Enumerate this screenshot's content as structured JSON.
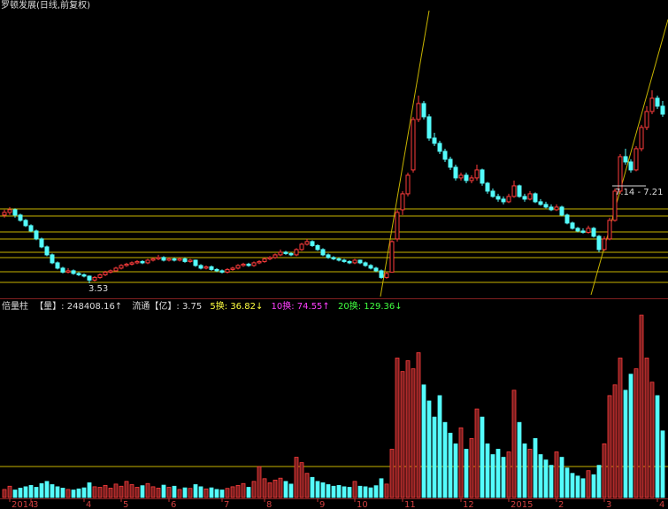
{
  "chart_data": {
    "type": "candlestick",
    "title": "罗顿发展(日线,前复权)",
    "volume_header": [
      "倍量柱",
      "【量】: 248408.16↑",
      "流通【亿】: 3.75",
      "5换: 36.82↓",
      "10换: 74.55↑",
      "20换: 129.36↓"
    ],
    "annotations": [
      "3.53",
      "7.14 - 7.21"
    ],
    "up_color": "#ff3c3c",
    "down_color": "#54fcfc",
    "ylim": [
      3.03,
      14.2
    ],
    "vlim": [
      0,
      700000
    ],
    "categories": [
      null,
      "2014",
      null,
      null,
      null,
      "3",
      null,
      null,
      null,
      null,
      null,
      null,
      null,
      null,
      null,
      "4",
      null,
      null,
      null,
      null,
      null,
      null,
      "5",
      null,
      null,
      null,
      null,
      null,
      null,
      null,
      null,
      "6",
      null,
      null,
      null,
      null,
      null,
      null,
      null,
      null,
      null,
      "7",
      null,
      null,
      null,
      null,
      null,
      null,
      null,
      "8",
      null,
      null,
      null,
      null,
      null,
      null,
      null,
      null,
      null,
      "9",
      null,
      null,
      null,
      null,
      null,
      null,
      "10",
      null,
      null,
      null,
      null,
      null,
      null,
      null,
      null,
      "11",
      null,
      null,
      null,
      null,
      null,
      null,
      null,
      null,
      null,
      null,
      "12",
      null,
      null,
      null,
      null,
      null,
      null,
      null,
      null,
      "2015",
      null,
      null,
      null,
      null,
      null,
      null,
      null,
      null,
      "2",
      null,
      null,
      null,
      null,
      null,
      null,
      null,
      null,
      "3",
      null,
      null,
      null,
      null,
      null,
      null,
      null,
      null,
      null,
      "4",
      null
    ],
    "candles": [
      [
        6.1,
        6.3,
        6.0,
        6.2
      ],
      [
        6.2,
        6.4,
        6.1,
        6.3
      ],
      [
        6.3,
        6.35,
        6.0,
        6.1
      ],
      [
        6.1,
        6.15,
        5.85,
        5.9
      ],
      [
        5.9,
        5.95,
        5.65,
        5.7
      ],
      [
        5.7,
        5.75,
        5.45,
        5.5
      ],
      [
        5.5,
        5.55,
        5.15,
        5.2
      ],
      [
        5.2,
        5.25,
        4.85,
        4.9
      ],
      [
        4.9,
        4.95,
        4.55,
        4.6
      ],
      [
        4.6,
        4.65,
        4.25,
        4.3
      ],
      [
        4.3,
        4.35,
        4.05,
        4.1
      ],
      [
        4.1,
        4.15,
        3.9,
        3.95
      ],
      [
        3.95,
        4.1,
        3.9,
        4.0
      ],
      [
        4.0,
        4.05,
        3.85,
        3.9
      ],
      [
        3.9,
        3.95,
        3.8,
        3.85
      ],
      [
        3.85,
        3.9,
        3.75,
        3.8
      ],
      [
        3.8,
        3.82,
        3.53,
        3.65
      ],
      [
        3.65,
        3.8,
        3.6,
        3.75
      ],
      [
        3.75,
        3.9,
        3.7,
        3.85
      ],
      [
        3.85,
        4.0,
        3.8,
        3.95
      ],
      [
        3.95,
        4.05,
        3.9,
        4.0
      ],
      [
        4.0,
        4.15,
        3.95,
        4.1
      ],
      [
        4.1,
        4.25,
        4.05,
        4.2
      ],
      [
        4.2,
        4.3,
        4.15,
        4.25
      ],
      [
        4.25,
        4.35,
        4.2,
        4.3
      ],
      [
        4.3,
        4.4,
        4.25,
        4.35
      ],
      [
        4.35,
        4.4,
        4.25,
        4.3
      ],
      [
        4.3,
        4.45,
        4.25,
        4.4
      ],
      [
        4.4,
        4.5,
        4.35,
        4.45
      ],
      [
        4.45,
        4.6,
        4.4,
        4.5
      ],
      [
        4.5,
        4.55,
        4.35,
        4.4
      ],
      [
        4.4,
        4.5,
        4.35,
        4.45
      ],
      [
        4.45,
        4.5,
        4.35,
        4.4
      ],
      [
        4.4,
        4.5,
        4.35,
        4.45
      ],
      [
        4.45,
        4.5,
        4.3,
        4.35
      ],
      [
        4.35,
        4.45,
        4.3,
        4.4
      ],
      [
        4.4,
        4.42,
        4.15,
        4.2
      ],
      [
        4.2,
        4.25,
        4.05,
        4.1
      ],
      [
        4.1,
        4.2,
        4.05,
        4.15
      ],
      [
        4.15,
        4.2,
        4.0,
        4.05
      ],
      [
        4.05,
        4.1,
        3.95,
        4.0
      ],
      [
        4.0,
        4.05,
        3.9,
        3.95
      ],
      [
        3.95,
        4.1,
        3.9,
        4.05
      ],
      [
        4.05,
        4.15,
        4.0,
        4.1
      ],
      [
        4.1,
        4.25,
        4.05,
        4.2
      ],
      [
        4.2,
        4.3,
        4.15,
        4.25
      ],
      [
        4.25,
        4.3,
        4.15,
        4.2
      ],
      [
        4.2,
        4.35,
        4.15,
        4.3
      ],
      [
        4.3,
        4.4,
        4.25,
        4.35
      ],
      [
        4.35,
        4.5,
        4.3,
        4.45
      ],
      [
        4.45,
        4.55,
        4.4,
        4.5
      ],
      [
        4.5,
        4.65,
        4.45,
        4.6
      ],
      [
        4.6,
        4.8,
        4.55,
        4.7
      ],
      [
        4.7,
        4.75,
        4.6,
        4.65
      ],
      [
        4.65,
        4.7,
        4.55,
        4.6
      ],
      [
        4.6,
        4.85,
        4.55,
        4.8
      ],
      [
        4.8,
        5.05,
        4.75,
        5.0
      ],
      [
        5.0,
        5.2,
        4.95,
        5.1
      ],
      [
        5.1,
        5.15,
        4.9,
        4.95
      ],
      [
        4.95,
        5.0,
        4.75,
        4.8
      ],
      [
        4.8,
        4.85,
        4.55,
        4.6
      ],
      [
        4.6,
        4.65,
        4.45,
        4.5
      ],
      [
        4.5,
        4.55,
        4.4,
        4.45
      ],
      [
        4.45,
        4.5,
        4.35,
        4.4
      ],
      [
        4.4,
        4.45,
        4.3,
        4.35
      ],
      [
        4.35,
        4.4,
        4.25,
        4.3
      ],
      [
        4.3,
        4.45,
        4.25,
        4.4
      ],
      [
        4.4,
        4.42,
        4.25,
        4.3
      ],
      [
        4.3,
        4.35,
        4.15,
        4.2
      ],
      [
        4.2,
        4.25,
        4.05,
        4.1
      ],
      [
        4.1,
        4.15,
        3.95,
        4.0
      ],
      [
        4.0,
        4.05,
        3.7,
        3.75
      ],
      [
        3.75,
        3.95,
        3.7,
        3.9
      ],
      [
        3.95,
        5.15,
        3.95,
        5.1
      ],
      [
        5.2,
        6.3,
        5.1,
        6.2
      ],
      [
        6.3,
        7.0,
        6.1,
        6.9
      ],
      [
        6.9,
        7.7,
        6.8,
        7.6
      ],
      [
        7.8,
        9.8,
        7.7,
        9.7
      ],
      [
        9.7,
        10.6,
        9.6,
        10.3
      ],
      [
        10.3,
        10.4,
        9.7,
        9.8
      ],
      [
        9.8,
        9.9,
        8.9,
        9.0
      ],
      [
        9.0,
        9.2,
        8.7,
        8.8
      ],
      [
        8.8,
        8.9,
        8.4,
        8.5
      ],
      [
        8.5,
        8.6,
        8.1,
        8.2
      ],
      [
        8.2,
        8.3,
        7.8,
        7.9
      ],
      [
        7.9,
        8.0,
        7.4,
        7.5
      ],
      [
        7.5,
        7.7,
        7.4,
        7.6
      ],
      [
        7.6,
        7.7,
        7.3,
        7.4
      ],
      [
        7.4,
        7.6,
        7.3,
        7.5
      ],
      [
        7.5,
        8.0,
        7.4,
        7.8
      ],
      [
        7.8,
        7.85,
        7.2,
        7.3
      ],
      [
        7.3,
        7.35,
        6.9,
        7.0
      ],
      [
        7.0,
        7.1,
        6.75,
        6.8
      ],
      [
        6.8,
        6.9,
        6.6,
        6.7
      ],
      [
        6.7,
        6.8,
        6.5,
        6.6
      ],
      [
        6.6,
        6.9,
        6.55,
        6.8
      ],
      [
        6.8,
        7.4,
        6.75,
        7.2
      ],
      [
        7.2,
        7.25,
        6.75,
        6.8
      ],
      [
        6.8,
        6.9,
        6.6,
        6.7
      ],
      [
        6.7,
        7.0,
        6.65,
        6.9
      ],
      [
        6.9,
        6.95,
        6.55,
        6.6
      ],
      [
        6.6,
        6.7,
        6.45,
        6.5
      ],
      [
        6.5,
        6.6,
        6.35,
        6.4
      ],
      [
        6.4,
        6.5,
        6.25,
        6.3
      ],
      [
        6.3,
        6.5,
        6.25,
        6.4
      ],
      [
        6.4,
        6.45,
        6.05,
        6.1
      ],
      [
        6.1,
        6.15,
        5.75,
        5.8
      ],
      [
        5.8,
        5.85,
        5.55,
        5.6
      ],
      [
        5.6,
        5.65,
        5.45,
        5.5
      ],
      [
        5.5,
        5.6,
        5.4,
        5.45
      ],
      [
        5.45,
        5.7,
        5.4,
        5.6
      ],
      [
        5.6,
        5.65,
        5.25,
        5.3
      ],
      [
        5.3,
        5.35,
        4.7,
        4.8
      ],
      [
        4.8,
        5.3,
        4.75,
        5.2
      ],
      [
        5.2,
        6.0,
        5.15,
        5.9
      ],
      [
        5.9,
        7.1,
        5.85,
        7.0
      ],
      [
        7.0,
        8.4,
        6.9,
        8.3
      ],
      [
        8.3,
        8.6,
        8.0,
        8.1
      ],
      [
        8.1,
        8.2,
        7.7,
        7.8
      ],
      [
        7.8,
        8.7,
        7.75,
        8.6
      ],
      [
        8.6,
        9.5,
        8.5,
        9.4
      ],
      [
        9.4,
        10.2,
        9.3,
        10.0
      ],
      [
        10.0,
        10.8,
        9.9,
        10.5
      ],
      [
        10.5,
        10.6,
        10.1,
        10.2
      ],
      [
        10.2,
        10.4,
        9.8,
        9.9
      ]
    ],
    "volumes": [
      30000,
      42000,
      28000,
      35000,
      40000,
      45000,
      38000,
      52000,
      60000,
      48000,
      40000,
      35000,
      30000,
      28000,
      32000,
      36000,
      55000,
      40000,
      38000,
      45000,
      35000,
      50000,
      42000,
      60000,
      48000,
      38000,
      44000,
      52000,
      40000,
      35000,
      46000,
      38000,
      42000,
      30000,
      36000,
      34000,
      48000,
      40000,
      32000,
      36000,
      30000,
      28000,
      34000,
      40000,
      45000,
      52000,
      38000,
      60000,
      115000,
      70000,
      55000,
      65000,
      72000,
      60000,
      50000,
      150000,
      130000,
      90000,
      75000,
      60000,
      55000,
      48000,
      42000,
      45000,
      40000,
      38000,
      60000,
      42000,
      40000,
      36000,
      44000,
      70000,
      50000,
      180000,
      520000,
      470000,
      510000,
      480000,
      540000,
      420000,
      360000,
      300000,
      380000,
      280000,
      240000,
      200000,
      260000,
      180000,
      220000,
      330000,
      300000,
      200000,
      160000,
      180000,
      150000,
      170000,
      400000,
      280000,
      200000,
      180000,
      220000,
      160000,
      140000,
      120000,
      170000,
      150000,
      110000,
      90000,
      80000,
      70000,
      100000,
      85000,
      120000,
      200000,
      380000,
      420000,
      520000,
      400000,
      460000,
      480000,
      680000,
      520000,
      430000,
      380000,
      248408.16
    ]
  }
}
